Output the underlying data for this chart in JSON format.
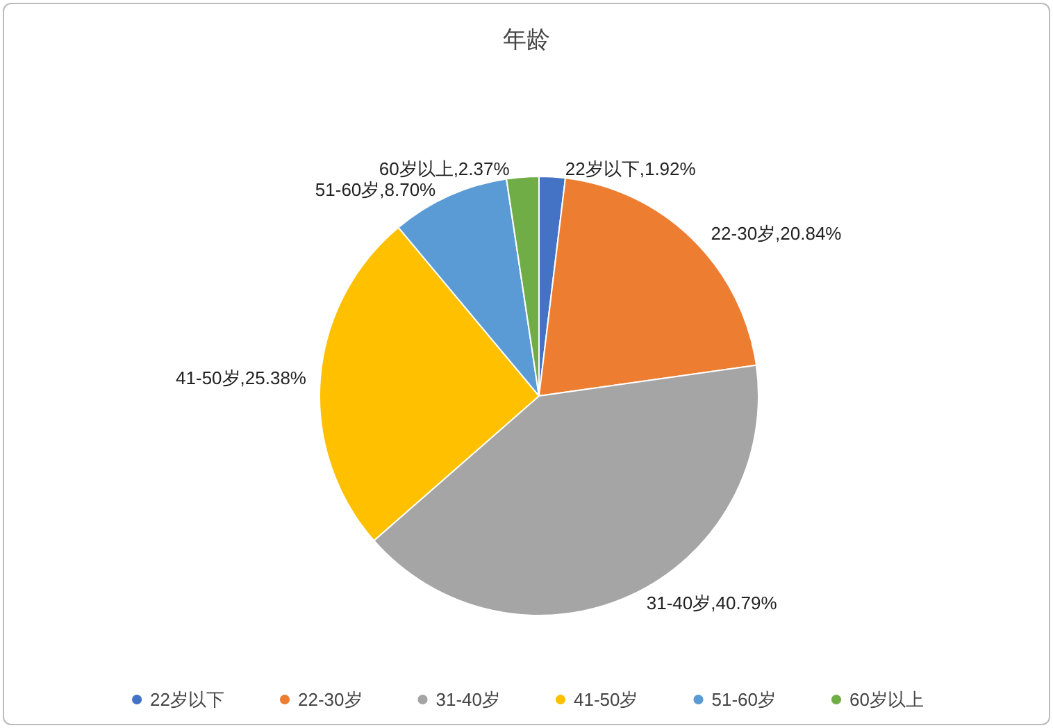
{
  "chart_data": {
    "type": "pie",
    "title": "年龄",
    "categories": [
      "22岁以下",
      "22-30岁",
      "31-40岁",
      "41-50岁",
      "51-60岁",
      "60岁以上"
    ],
    "values": [
      1.92,
      20.84,
      40.79,
      25.38,
      8.7,
      2.37
    ],
    "colors": [
      "#4472c4",
      "#ed7d31",
      "#a5a5a5",
      "#ffc000",
      "#5b9bd5",
      "#70ad47"
    ],
    "value_labels": [
      ",1.92%",
      ",20.84%",
      ",40.79%",
      ",25.38%",
      ",8.70%",
      ",2.37%"
    ],
    "legend": "bottom",
    "marker": "circle"
  }
}
